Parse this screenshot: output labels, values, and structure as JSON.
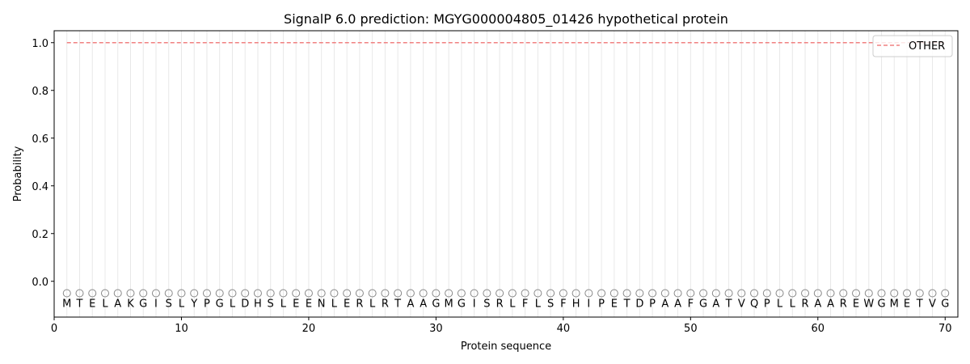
{
  "chart_data": {
    "type": "line",
    "title": "SignalP 6.0 prediction: MGYG000004805_01426 hypothetical protein",
    "xlabel": "Protein sequence",
    "ylabel": "Probability",
    "xlim": [
      0,
      71
    ],
    "ylim": [
      -0.15,
      1.05
    ],
    "xticks": [
      0,
      10,
      20,
      30,
      40,
      50,
      60,
      70
    ],
    "yticks": [
      0.0,
      0.2,
      0.4,
      0.6,
      0.8,
      1.0
    ],
    "ytick_labels": [
      "0.0",
      "0.2",
      "0.4",
      "0.6",
      "0.8",
      "1.0"
    ],
    "sequence": "MTELAKGISLYPGLDHSLEENLERLRTAAGMGISRLFLSFHIPETDPAAFGATVQPLLRAAREWGMETVG",
    "per_residue_label": "O",
    "series": [
      {
        "name": "OTHER",
        "color": "#f08080",
        "style": "dashed",
        "x_range": [
          1,
          70
        ],
        "value": 1.0
      }
    ],
    "legend": {
      "placement": "top-right",
      "entries": [
        "OTHER"
      ]
    },
    "grid": "vertical lines at each residue"
  }
}
